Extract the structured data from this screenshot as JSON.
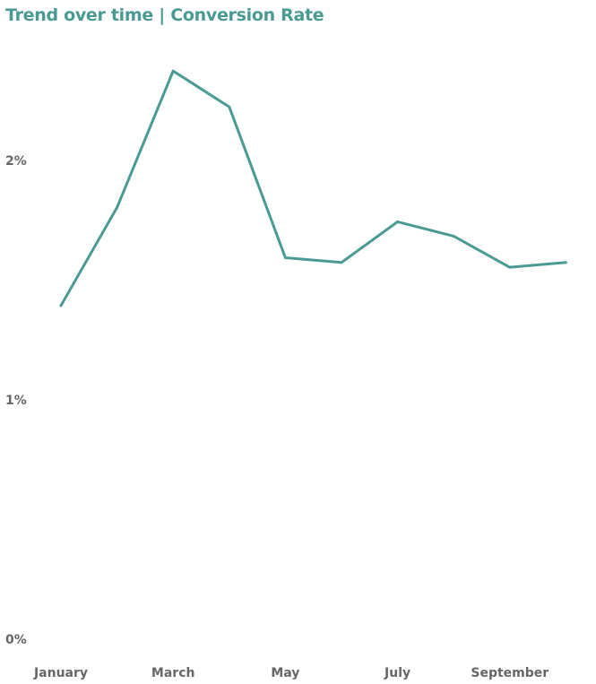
{
  "chart_data": {
    "type": "line",
    "title": "Trend over time | Conversion Rate",
    "xlabel": "",
    "ylabel": "",
    "x": [
      1,
      2,
      3,
      4,
      5,
      6,
      7,
      8,
      9,
      10
    ],
    "x_ticks": [
      {
        "x": 1,
        "label": "January"
      },
      {
        "x": 3,
        "label": "March"
      },
      {
        "x": 5,
        "label": "May"
      },
      {
        "x": 7,
        "label": "July"
      },
      {
        "x": 9,
        "label": "September"
      }
    ],
    "series": [
      {
        "values": [
          1.42,
          1.83,
          2.4,
          2.25,
          1.62,
          1.6,
          1.77,
          1.71,
          1.58,
          1.6
        ]
      }
    ],
    "y_ticks": [
      {
        "value": 0,
        "label": "0%"
      },
      {
        "value": 1,
        "label": "1%"
      },
      {
        "value": 2,
        "label": "2%"
      }
    ],
    "ylim": [
      0,
      2.5
    ],
    "grid": false,
    "line_color": "#4a9a94",
    "title_color": "#4a9a94"
  }
}
